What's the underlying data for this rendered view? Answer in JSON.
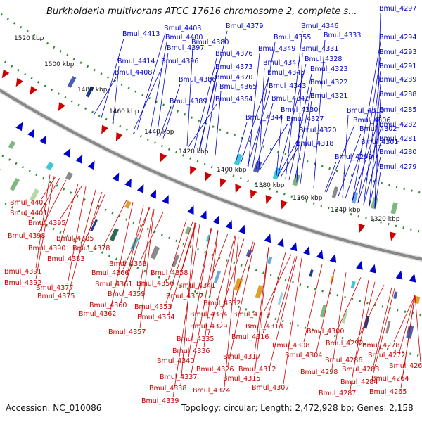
{
  "title": "Burkholderia multivorans ATCC 17616 chromosome 2, complete s...",
  "footer": {
    "accession": "Accession: NC_010086",
    "topology": "Topology: circular; Length: 2,472,928 bp; Genes: 2,158"
  },
  "kbp_labels": [
    "1520 kbp",
    "1500 kbp",
    "1480 kbp",
    "1460 kbp",
    "1440 kbp",
    "1420 kbp",
    "1400 kbp",
    "1380 kbp",
    "1360 kbp",
    "1340 kbp",
    "1320 kbp"
  ],
  "forward_genes": [
    "Bmul_4403",
    "Bmul_4413",
    "Bmul_4400",
    "Bmul_4397",
    "Bmul_4414",
    "Bmul_4396",
    "Bmul_4408",
    "Bmul_4386",
    "Bmul_4389",
    "Bmul_4380",
    "Bmul_4379",
    "Bmul_4376",
    "Bmul_4373",
    "Bmul_4370",
    "Bmul_4365",
    "Bmul_4364",
    "Bmul_4355",
    "Bmul_4346",
    "Bmul_4349",
    "Bmul_4347",
    "Bmul_4345",
    "Bmul_4343",
    "Bmul_4342",
    "Bmul_4344",
    "Bmul_4330",
    "Bmul_4327",
    "Bmul_4320",
    "Bmul_4318",
    "Bmul_4333",
    "Bmul_4331",
    "Bmul_4328",
    "Bmul_4323",
    "Bmul_4322",
    "Bmul_4321",
    "Bmul_4310",
    "Bmul_4306",
    "Bmul_4302",
    "Bmul_4301",
    "Bmul_4299",
    "Bmul_4297",
    "Bmul_4294",
    "Bmul_4293",
    "Bmul_4291",
    "Bmul_4289",
    "Bmul_4288",
    "Bmul_4285",
    "Bmul_4282",
    "Bmul_4281",
    "Bmul_4280",
    "Bmul_4279"
  ],
  "reverse_genes": [
    "Bmul_4402",
    "Bmul_4401",
    "Bmul_4395",
    "Bmul_4398",
    "Bmul_4385",
    "Bmul_4390",
    "Bmul_4378",
    "Bmul_4383",
    "Bmul_4391",
    "Bmul_4392",
    "Bmul_4363",
    "Bmul_4366",
    "Bmul_4358",
    "Bmul_4377",
    "Bmul_4361",
    "Bmul_4375",
    "Bmul_4359",
    "Bmul_4356",
    "Bmul_4360",
    "Bmul_4353",
    "Bmul_4352",
    "Bmul_4341",
    "Bmul_4362",
    "Bmul_4354",
    "Bmul_4357",
    "Bmul_4332",
    "Bmul_4334",
    "Bmul_4319",
    "Bmul_4329",
    "Bmul_4313",
    "Bmul_4316",
    "Bmul_4335",
    "Bmul_4336",
    "Bmul_4308",
    "Bmul_4300",
    "Bmul_4292",
    "Bmul_4317",
    "Bmul_4304",
    "Bmul_4340",
    "Bmul_4312",
    "Bmul_4298",
    "Bmul_4286",
    "Bmul_4278",
    "Bmul_4326",
    "Bmul_4315",
    "Bmul_4283",
    "Bmul_4272",
    "Bmul_4337",
    "Bmul_4324",
    "Bmul_4307",
    "Bmul_4284",
    "Bmul_4263",
    "Bmul_4338",
    "Bmul_4287",
    "Bmul_4264",
    "Bmul_4339",
    "Bmul_4265"
  ],
  "colors": {
    "forward": "#0000cc",
    "reverse": "#cc0000",
    "label_forward": "#0000cc",
    "label_reverse": "#cc0000",
    "backbone": "#888888",
    "dots": "#2e8b2e"
  }
}
